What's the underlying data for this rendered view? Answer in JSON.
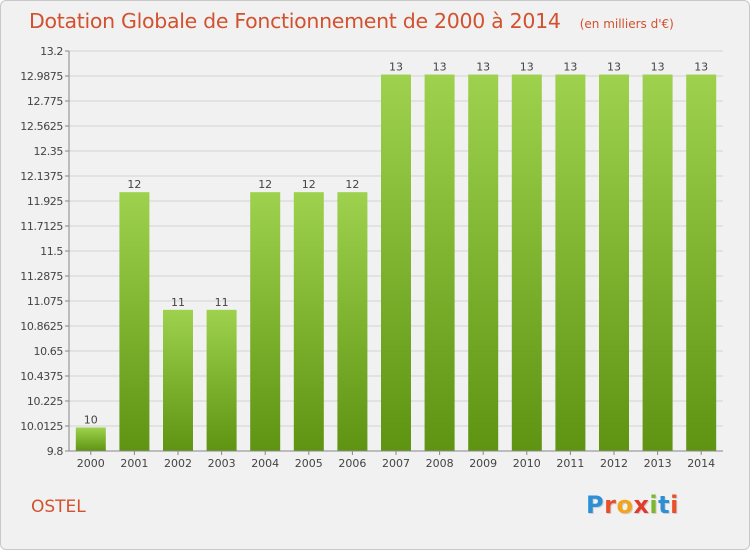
{
  "header": {
    "title": "Dotation Globale de Fonctionnement de 2000 à 2014",
    "unit": "(en milliers d'€)"
  },
  "commune": "OSTEL",
  "logo": {
    "text": "Proxiti",
    "letters": [
      {
        "ch": "P",
        "color": "#2d8fd6"
      },
      {
        "ch": "r",
        "color": "#e8502a"
      },
      {
        "ch": "o",
        "color": "#f2a41b"
      },
      {
        "ch": "x",
        "color": "#e23b2a"
      },
      {
        "ch": "i",
        "color": "#7bb82e"
      },
      {
        "ch": "t",
        "color": "#2d8fd6"
      },
      {
        "ch": "i",
        "color": "#e8502a"
      }
    ]
  },
  "chart_data": {
    "type": "bar",
    "title": "Dotation Globale de Fonctionnement de 2000 à 2014",
    "xlabel": "",
    "ylabel": "",
    "categories": [
      "2000",
      "2001",
      "2002",
      "2003",
      "2004",
      "2005",
      "2006",
      "2007",
      "2008",
      "2009",
      "2010",
      "2011",
      "2012",
      "2013",
      "2014"
    ],
    "values": [
      10,
      12,
      11,
      11,
      12,
      12,
      12,
      13,
      13,
      13,
      13,
      13,
      13,
      13,
      13
    ],
    "data_labels": [
      "10",
      "12",
      "11",
      "11",
      "12",
      "12",
      "12",
      "13",
      "13",
      "13",
      "13",
      "13",
      "13",
      "13",
      "13"
    ],
    "ylim": [
      9.8,
      13.2
    ],
    "yticks": [
      "9.8",
      "10.0125",
      "10.225",
      "10.4375",
      "10.65",
      "10.8625",
      "11.075",
      "11.2875",
      "11.5",
      "11.7125",
      "11.925",
      "12.1375",
      "12.35",
      "12.5625",
      "12.775",
      "12.9875",
      "13.2"
    ],
    "grid": true,
    "colors": {
      "bar_top": "#9ed24e",
      "bar_bottom": "#5e9412",
      "grid": "#d4d4d4",
      "axis": "#888888",
      "text": "#444444"
    }
  }
}
